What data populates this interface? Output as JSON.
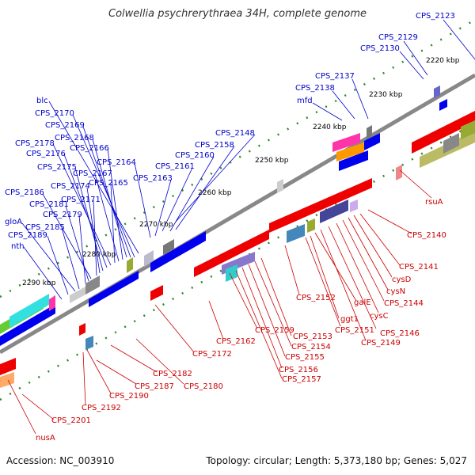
{
  "header": {
    "title": "Colwellia psychrerythraea 34H, complete genome"
  },
  "footer": {
    "accession": "Accession: NC_003910",
    "summary": "Topology: circular; Length: 5,373,180 bp; Genes: 5,027"
  },
  "colors": {
    "top_strand_label": "#0000cc",
    "bottom_strand_label": "#cc0000",
    "backbone": "#888888",
    "tick_dot": "#2a8a2a"
  },
  "ruler": [
    "2220 kbp",
    "2230 kbp",
    "2240 kbp",
    "2250 kbp",
    "2260 kbp",
    "2270 kbp",
    "2280 kbp",
    "2290 kbp"
  ],
  "top_labels": [
    "CPS_2123",
    "CPS_2129",
    "CPS_2130",
    "CPS_2137",
    "CPS_2138",
    "mfd",
    "CPS_2148",
    "CPS_2158",
    "CPS_2160",
    "CPS_2161",
    "CPS_2163",
    "CPS_2164",
    "blc",
    "CPS_2170",
    "CPS_2169",
    "CPS_2168",
    "CPS_2166",
    "CPS_2167",
    "CPS_2165",
    "CPS_2178",
    "CPS_2176",
    "CPS_2175",
    "CPS_2174",
    "CPS_2171",
    "CPS_2186",
    "CPS_2181",
    "CPS_2179",
    "gloA",
    "CPS_2185",
    "CPS_2189",
    "nth"
  ],
  "bottom_labels": [
    "rsuA",
    "CPS_2140",
    "CPS_2141",
    "cysD",
    "cysN",
    "CPS_2144",
    "cysC",
    "CPS_2146",
    "CPS_2149",
    "galE",
    "ggt1",
    "CPS_2151",
    "CPS_2152",
    "CPS_2153",
    "CPS_2154",
    "CPS_2155",
    "CPS_2156",
    "CPS_2157",
    "CPS_2159",
    "CPS_2162",
    "CPS_2172",
    "CPS_2180",
    "CPS_2182",
    "CPS_2187",
    "CPS_2190",
    "CPS_2192",
    "CPS_2201",
    "nusA"
  ]
}
